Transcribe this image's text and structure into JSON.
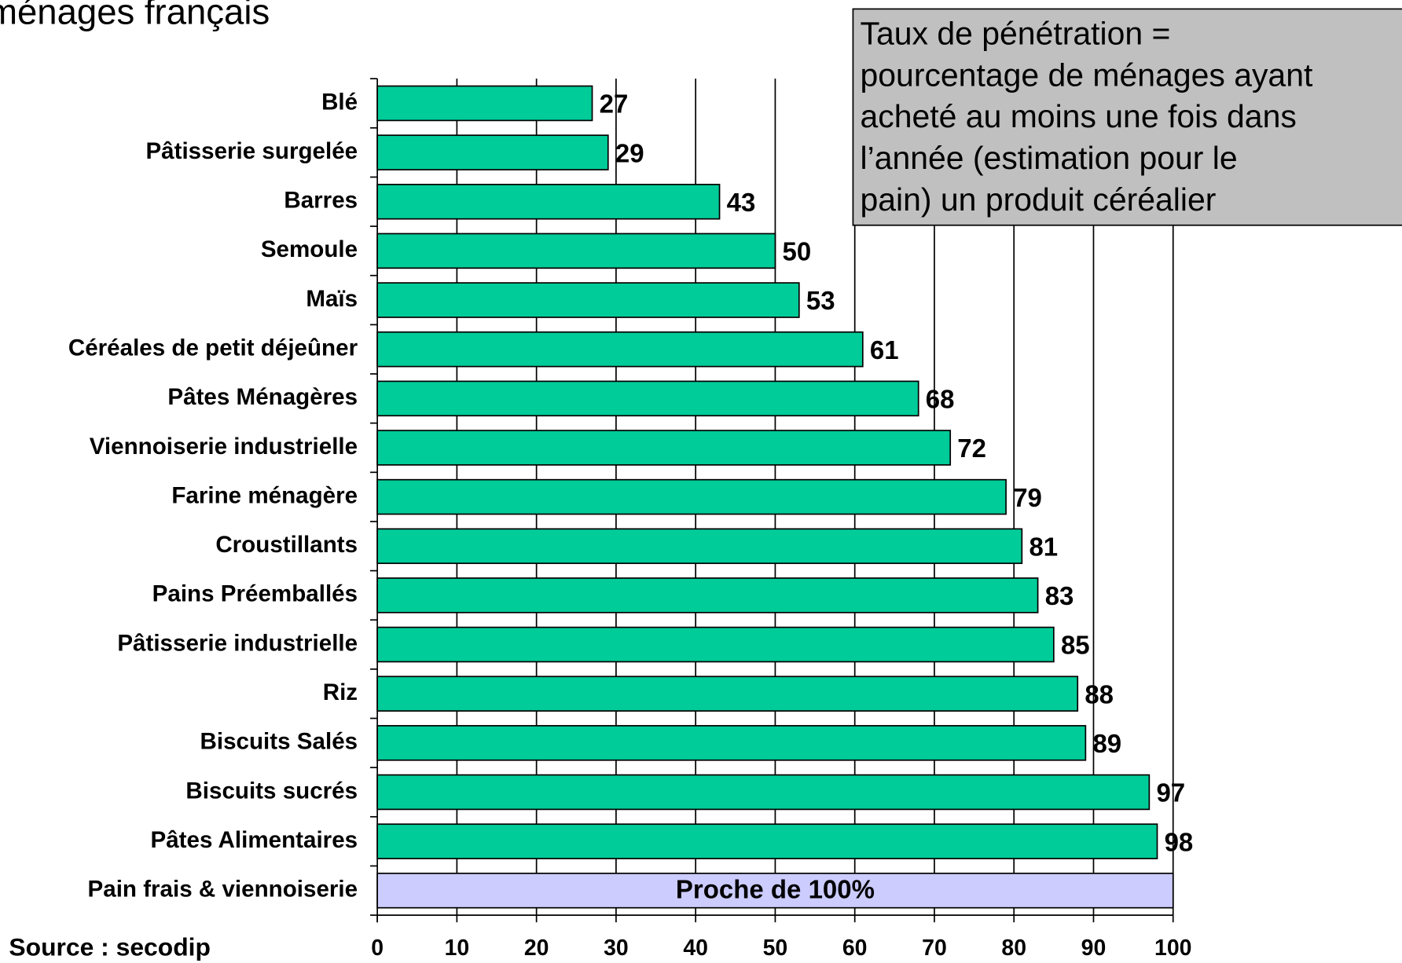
{
  "chart_data": {
    "type": "bar",
    "orientation": "horizontal",
    "title": "ménages français",
    "categories": [
      "Blé",
      "Pâtisserie surgelée",
      "Barres",
      "Semoule",
      "Maïs",
      "Céréales de petit déjeûner",
      "Pâtes Ménagères",
      "Viennoiserie industrielle",
      "Farine ménagère",
      "Croustillants",
      "Pains Préemballés",
      "Pâtisserie industrielle",
      "Riz",
      "Biscuits Salés",
      "Biscuits sucrés",
      "Pâtes Alimentaires",
      "Pain frais & viennoiserie"
    ],
    "values": [
      27,
      29,
      43,
      50,
      53,
      61,
      68,
      72,
      79,
      81,
      83,
      85,
      88,
      89,
      97,
      98,
      null
    ],
    "color": "#00cc99",
    "highlight": {
      "label": "Proche de 100%",
      "color": "#ccccff"
    },
    "xlim": [
      0,
      100
    ],
    "xticks": [
      0,
      10,
      20,
      30,
      40,
      50,
      60,
      70,
      80,
      90,
      100
    ],
    "grid": true,
    "note": [
      "Taux de pénétration =",
      "pourcentage de ménages ayant",
      "acheté au moins une fois dans",
      "l’année (estimation pour le",
      "pain) un produit céréalier"
    ],
    "source": "Source : secodip"
  }
}
